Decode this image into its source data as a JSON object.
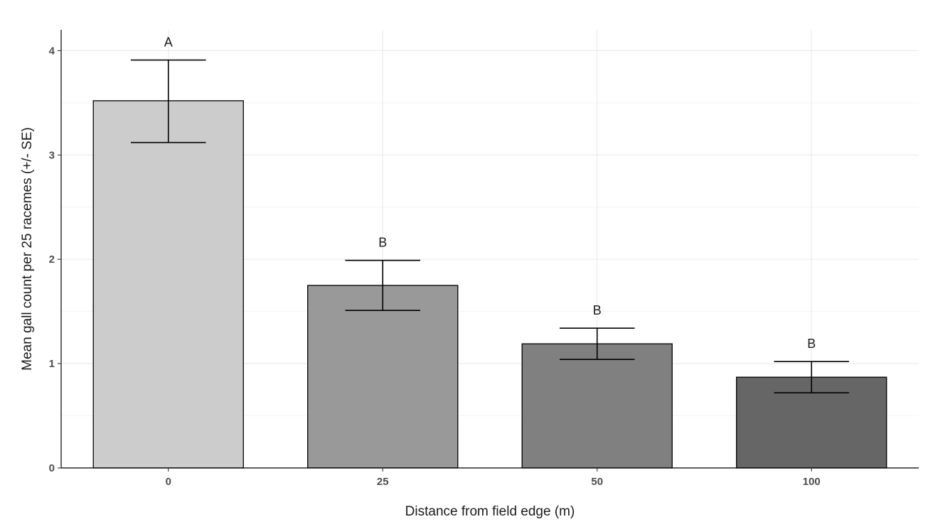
{
  "chart_data": {
    "type": "bar",
    "title": "",
    "xlabel": "Distance from field edge (m)",
    "ylabel": "Mean gall count per 25 racemes (+/- SE)",
    "categories": [
      "0",
      "25",
      "50",
      "100"
    ],
    "values": [
      3.52,
      1.75,
      1.19,
      0.87
    ],
    "error_upper": [
      3.91,
      1.99,
      1.34,
      1.02
    ],
    "error_lower": [
      3.12,
      1.51,
      1.04,
      0.72
    ],
    "significance_letters": [
      "A",
      "B",
      "B",
      "B"
    ],
    "bar_colors": [
      "#cccccc",
      "#999999",
      "#808080",
      "#666666"
    ],
    "ylim": [
      0,
      4.2
    ],
    "yticks": [
      0,
      1,
      2,
      3,
      4
    ],
    "grid": true,
    "legend": "none"
  }
}
